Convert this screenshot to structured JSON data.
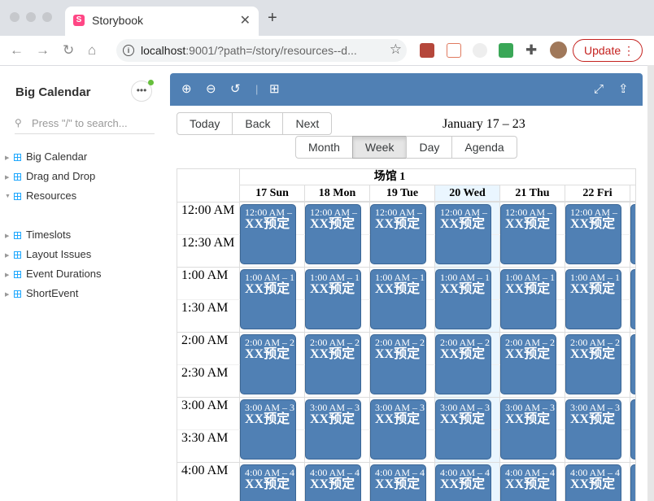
{
  "browser": {
    "tab_title": "Storybook",
    "url_host": "localhost",
    "url_rest": ":9001/?path=/story/resources--d...",
    "update_label": "Update"
  },
  "sidebar": {
    "brand": "Big Calendar",
    "search_placeholder": "Press \"/\" to search...",
    "items": [
      {
        "label": "Big Calendar",
        "expanded": false
      },
      {
        "label": "Drag and Drop",
        "expanded": false
      },
      {
        "label": "Resources",
        "expanded": true
      },
      {
        "label": "Timeslots",
        "expanded": false
      },
      {
        "label": "Layout Issues",
        "expanded": false
      },
      {
        "label": "Event Durations",
        "expanded": false
      },
      {
        "label": "ShortEvent",
        "expanded": false
      }
    ]
  },
  "calendar": {
    "nav_buttons": [
      "Today",
      "Back",
      "Next"
    ],
    "range_label": "January 17 – 23",
    "views": [
      "Month",
      "Week",
      "Day",
      "Agenda"
    ],
    "active_view": "Week",
    "resource_title": "场馆 1",
    "days": [
      "17 Sun",
      "18 Mon",
      "19 Tue",
      "20 Wed",
      "21 Thu",
      "22 Fri"
    ],
    "today_index": 3,
    "time_labels": [
      "12:00 AM",
      "12:30 AM",
      "1:00 AM",
      "1:30 AM",
      "2:00 AM",
      "2:30 AM",
      "3:00 AM",
      "3:30 AM",
      "4:00 AM"
    ],
    "event_times": [
      "12:00 AM –",
      "1:00 AM – 1",
      "2:00 AM – 2",
      "3:00 AM – 3",
      "4:00 AM – 4"
    ],
    "event_title": "XX预定"
  },
  "colors": {
    "event": "#5080b4",
    "toolbar": "#5080b4",
    "today": "#eaf6ff"
  }
}
